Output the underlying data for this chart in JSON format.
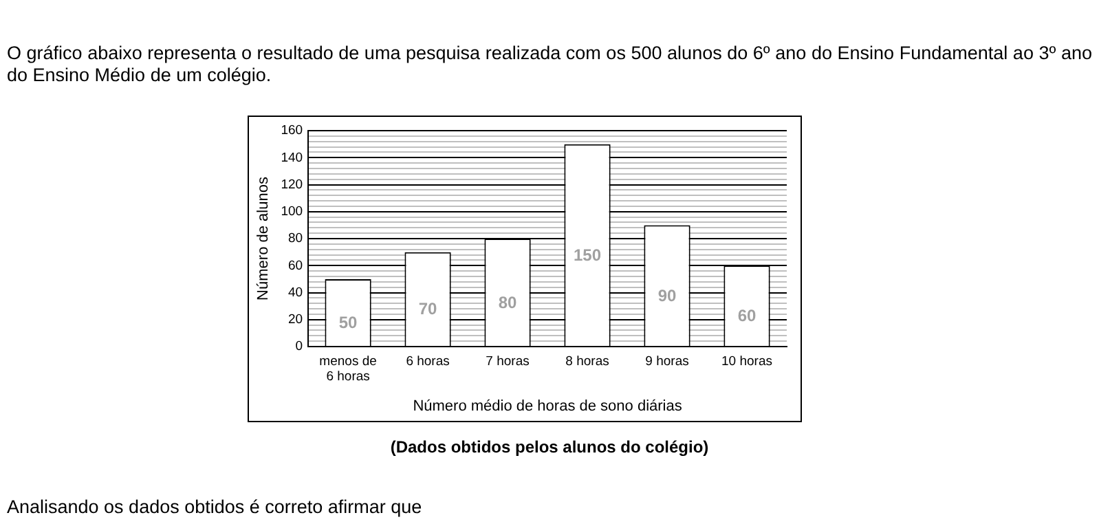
{
  "chart_data": {
    "type": "bar",
    "title": "O gráfico abaixo representa o resultado de uma pesquisa realizada com os 500 alunos do 6º ano do Ensino Fundamental ao 3º ano do Ensino Médio de um colégio.",
    "xlabel": "Número médio de horas de sono diárias",
    "ylabel": "Número de alunos",
    "categories": [
      "menos de\n6 horas",
      "6 horas",
      "7 horas",
      "8 horas",
      "9 horas",
      "10 horas"
    ],
    "values": [
      50,
      70,
      80,
      150,
      90,
      60
    ],
    "color": "#ffffff",
    "data_labels": true,
    "ylim": [
      0,
      160
    ],
    "yticks": [
      0,
      {
        "value": 4,
        "label": null
      },
      {
        "value": 8,
        "label": null
      },
      {
        "value": 12,
        "label": null
      },
      {
        "value": 16,
        "label": null
      },
      20,
      {
        "value": 24,
        "label": null
      },
      {
        "value": 28,
        "label": null
      },
      {
        "value": 32,
        "label": null
      },
      {
        "value": 36,
        "label": null
      },
      40,
      {
        "value": 44,
        "label": null
      },
      {
        "value": 48,
        "label": null
      },
      {
        "value": 52,
        "label": null
      },
      {
        "value": 56,
        "label": null
      },
      60,
      {
        "value": 64,
        "label": null
      },
      {
        "value": 68,
        "label": null
      },
      {
        "value": 72,
        "label": null
      },
      {
        "value": 76,
        "label": null
      },
      80,
      {
        "value": 84,
        "label": null
      },
      {
        "value": 88,
        "label": null
      },
      {
        "value": 92,
        "label": null
      },
      {
        "value": 96,
        "label": null
      },
      100,
      {
        "value": 104,
        "label": null
      },
      {
        "value": 108,
        "label": null
      },
      {
        "value": 112,
        "label": null
      },
      {
        "value": 116,
        "label": null
      },
      120,
      {
        "value": 124,
        "label": null
      },
      {
        "value": 128,
        "label": null
      },
      {
        "value": 132,
        "label": null
      },
      {
        "value": 136,
        "label": null
      },
      140,
      {
        "value": 144,
        "label": null
      },
      {
        "value": 148,
        "label": null
      },
      {
        "value": 152,
        "label": null
      },
      {
        "value": 156,
        "label": null
      },
      160
    ],
    "grid": "y",
    "legend": false,
    "annotations": [
      "(Dados obtidos pelos alunos do colégio)",
      "Analisando os dados obtidos é correto afirmar que"
    ]
  }
}
